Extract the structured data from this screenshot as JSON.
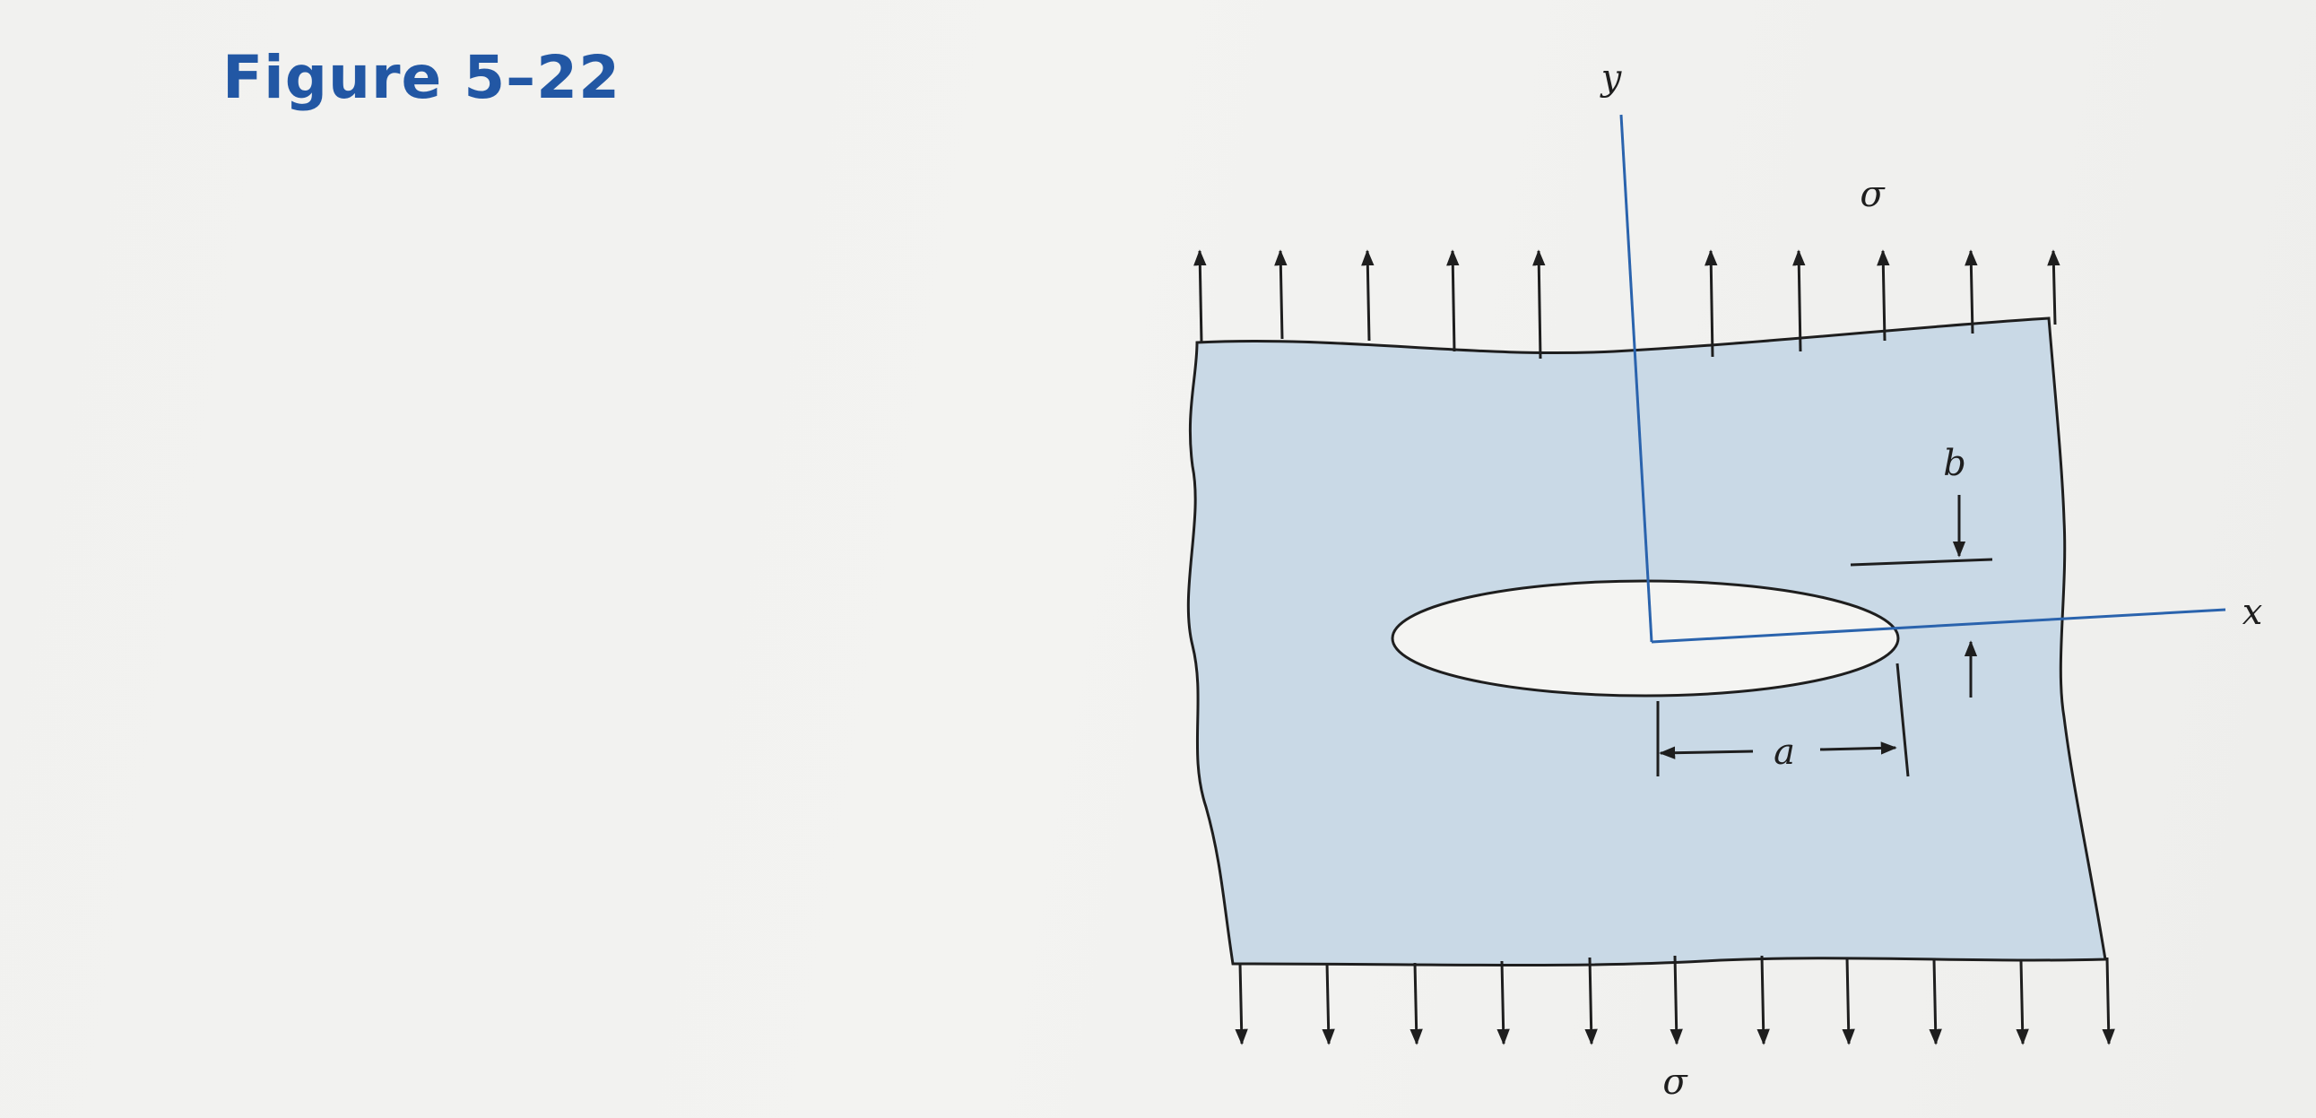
{
  "figure": {
    "title": "Figure 5–22"
  },
  "labels": {
    "y_axis": "y",
    "x_axis": "x",
    "sigma_top": "σ",
    "sigma_bottom": "σ",
    "b": "b",
    "a": "a"
  },
  "colors": {
    "title": "#2257a4",
    "plate_fill": "#c9d9e6",
    "axis_line": "#2a63ad",
    "ink": "#1e1e1e"
  },
  "icons": {
    "load_arrow_up": "arrow-up-icon",
    "load_arrow_down": "arrow-down-icon"
  }
}
